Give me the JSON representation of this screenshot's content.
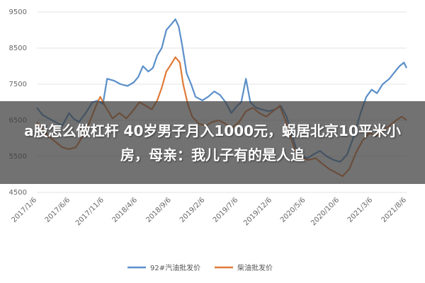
{
  "overlay": {
    "title": "a股怎么做杠杆 40岁男子月入1000元，蜗居北京10平米小房，母亲：我儿子有的是人追"
  },
  "chart_data": {
    "type": "line",
    "title": "",
    "xlabel": "",
    "ylabel": "",
    "ylim": [
      4500,
      9500
    ],
    "yticks": [
      4500,
      5500,
      6500,
      7500,
      8500,
      9500
    ],
    "xlim": [
      "2017-01-06",
      "2021-08-06"
    ],
    "xticks": [
      "2017/1/6",
      "2017/6/6",
      "2017/11/6",
      "2018/4/6",
      "2018/9/6",
      "2019/2/6",
      "2019/7/6",
      "2019/12/6",
      "2020/5/6",
      "2020/10/6",
      "2021/3/6",
      "2021/8/6"
    ],
    "grid": "horizontal",
    "legend": "bottom",
    "series": [
      {
        "name": "92#汽油批发价",
        "color": "#5b8fc9",
        "points": [
          [
            "2017-01-06",
            6850
          ],
          [
            "2017-02-01",
            6650
          ],
          [
            "2017-03-01",
            6550
          ],
          [
            "2017-04-01",
            6450
          ],
          [
            "2017-05-01",
            6350
          ],
          [
            "2017-06-01",
            6700
          ],
          [
            "2017-06-20",
            6550
          ],
          [
            "2017-07-15",
            6450
          ],
          [
            "2017-08-15",
            6700
          ],
          [
            "2017-09-15",
            7000
          ],
          [
            "2017-10-10",
            7050
          ],
          [
            "2017-11-01",
            6950
          ],
          [
            "2017-11-20",
            7650
          ],
          [
            "2017-12-20",
            7600
          ],
          [
            "2018-01-20",
            7500
          ],
          [
            "2018-02-20",
            7450
          ],
          [
            "2018-03-20",
            7550
          ],
          [
            "2018-04-10",
            7700
          ],
          [
            "2018-05-01",
            8000
          ],
          [
            "2018-05-25",
            7850
          ],
          [
            "2018-06-15",
            7950
          ],
          [
            "2018-07-05",
            8300
          ],
          [
            "2018-07-25",
            8500
          ],
          [
            "2018-08-15",
            9000
          ],
          [
            "2018-09-05",
            9150
          ],
          [
            "2018-09-25",
            9300
          ],
          [
            "2018-10-10",
            9100
          ],
          [
            "2018-10-25",
            8600
          ],
          [
            "2018-11-15",
            7800
          ],
          [
            "2018-12-05",
            7500
          ],
          [
            "2018-12-25",
            7150
          ],
          [
            "2019-01-25",
            7050
          ],
          [
            "2019-02-20",
            7150
          ],
          [
            "2019-03-20",
            7300
          ],
          [
            "2019-04-15",
            7200
          ],
          [
            "2019-05-10",
            7000
          ],
          [
            "2019-06-05",
            6700
          ],
          [
            "2019-07-01",
            6900
          ],
          [
            "2019-07-20",
            7000
          ],
          [
            "2019-08-10",
            7650
          ],
          [
            "2019-08-30",
            7000
          ],
          [
            "2019-09-25",
            6850
          ],
          [
            "2019-10-20",
            6800
          ],
          [
            "2019-11-20",
            6750
          ],
          [
            "2019-12-20",
            6800
          ],
          [
            "2020-01-15",
            6900
          ],
          [
            "2020-02-10",
            6600
          ],
          [
            "2020-03-05",
            6100
          ],
          [
            "2020-03-25",
            5700
          ],
          [
            "2020-04-20",
            5500
          ],
          [
            "2020-05-15",
            5450
          ],
          [
            "2020-06-10",
            5550
          ],
          [
            "2020-07-10",
            5650
          ],
          [
            "2020-08-10",
            5500
          ],
          [
            "2020-09-10",
            5400
          ],
          [
            "2020-10-10",
            5350
          ],
          [
            "2020-11-10",
            5550
          ],
          [
            "2020-12-10",
            6050
          ],
          [
            "2021-01-10",
            6700
          ],
          [
            "2021-02-05",
            7150
          ],
          [
            "2021-03-01",
            7350
          ],
          [
            "2021-03-25",
            7250
          ],
          [
            "2021-04-20",
            7500
          ],
          [
            "2021-05-20",
            7650
          ],
          [
            "2021-06-15",
            7850
          ],
          [
            "2021-07-05",
            8000
          ],
          [
            "2021-07-25",
            8100
          ],
          [
            "2021-08-06",
            7950
          ]
        ]
      },
      {
        "name": "柴油批发价",
        "color": "#e07b39",
        "points": [
          [
            "2017-01-06",
            6450
          ],
          [
            "2017-02-01",
            6250
          ],
          [
            "2017-03-01",
            6050
          ],
          [
            "2017-04-01",
            5900
          ],
          [
            "2017-05-01",
            5750
          ],
          [
            "2017-06-01",
            5700
          ],
          [
            "2017-07-01",
            5750
          ],
          [
            "2017-08-01",
            6050
          ],
          [
            "2017-09-01",
            6450
          ],
          [
            "2017-10-01",
            6900
          ],
          [
            "2017-10-20",
            7150
          ],
          [
            "2017-11-10",
            6900
          ],
          [
            "2017-12-15",
            6550
          ],
          [
            "2018-01-15",
            6700
          ],
          [
            "2018-02-15",
            6550
          ],
          [
            "2018-03-15",
            6750
          ],
          [
            "2018-04-15",
            7000
          ],
          [
            "2018-05-15",
            6900
          ],
          [
            "2018-06-10",
            6800
          ],
          [
            "2018-07-05",
            7050
          ],
          [
            "2018-07-25",
            7400
          ],
          [
            "2018-08-15",
            7850
          ],
          [
            "2018-09-05",
            8050
          ],
          [
            "2018-09-25",
            8250
          ],
          [
            "2018-10-15",
            8100
          ],
          [
            "2018-10-30",
            7500
          ],
          [
            "2018-11-20",
            6950
          ],
          [
            "2018-12-10",
            6600
          ],
          [
            "2019-01-10",
            6400
          ],
          [
            "2019-02-10",
            6350
          ],
          [
            "2019-03-10",
            6450
          ],
          [
            "2019-04-10",
            6500
          ],
          [
            "2019-05-10",
            6400
          ],
          [
            "2019-06-10",
            6300
          ],
          [
            "2019-07-10",
            6450
          ],
          [
            "2019-08-10",
            6750
          ],
          [
            "2019-09-10",
            6850
          ],
          [
            "2019-10-10",
            6700
          ],
          [
            "2019-11-10",
            6600
          ],
          [
            "2019-12-10",
            6750
          ],
          [
            "2020-01-10",
            6900
          ],
          [
            "2020-02-05",
            6500
          ],
          [
            "2020-03-01",
            6000
          ],
          [
            "2020-03-25",
            5600
          ],
          [
            "2020-04-20",
            5450
          ],
          [
            "2020-05-20",
            5400
          ],
          [
            "2020-06-20",
            5450
          ],
          [
            "2020-07-20",
            5300
          ],
          [
            "2020-08-20",
            5150
          ],
          [
            "2020-09-20",
            5050
          ],
          [
            "2020-10-20",
            4950
          ],
          [
            "2020-11-20",
            5150
          ],
          [
            "2020-12-20",
            5600
          ],
          [
            "2021-01-20",
            5950
          ],
          [
            "2021-02-20",
            6150
          ],
          [
            "2021-03-20",
            6050
          ],
          [
            "2021-04-20",
            6200
          ],
          [
            "2021-05-20",
            6350
          ],
          [
            "2021-06-20",
            6500
          ],
          [
            "2021-07-15",
            6600
          ],
          [
            "2021-08-06",
            6500
          ]
        ]
      }
    ]
  }
}
